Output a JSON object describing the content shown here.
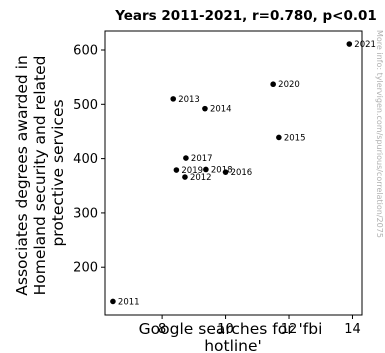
{
  "chart_data": {
    "type": "scatter",
    "title": "Years 2011-2021, r=0.780, p<0.01",
    "xlabel": [
      "Google searches for 'fbi",
      "hotline'"
    ],
    "ylabel": [
      "Associates degrees awarded in",
      "Homeland security and related",
      "protective services"
    ],
    "xlim": [
      6.2,
      14.3
    ],
    "ylim": [
      112,
      635
    ],
    "xticks": [
      8,
      10,
      12,
      14
    ],
    "yticks": [
      200,
      300,
      400,
      500,
      600
    ],
    "points": [
      {
        "label": "2011",
        "x": 6.45,
        "y": 137
      },
      {
        "label": "2012",
        "x": 8.72,
        "y": 366
      },
      {
        "label": "2013",
        "x": 8.35,
        "y": 510
      },
      {
        "label": "2014",
        "x": 9.35,
        "y": 492
      },
      {
        "label": "2015",
        "x": 11.68,
        "y": 439
      },
      {
        "label": "2016",
        "x": 10.0,
        "y": 375
      },
      {
        "label": "2017",
        "x": 8.75,
        "y": 401
      },
      {
        "label": "2018",
        "x": 9.38,
        "y": 380
      },
      {
        "label": "2019",
        "x": 8.45,
        "y": 379
      },
      {
        "label": "2020",
        "x": 11.5,
        "y": 537
      },
      {
        "label": "2021",
        "x": 13.9,
        "y": 611
      }
    ],
    "grid": false,
    "marker_color": "#000000"
  },
  "watermark": "More info: tylervigen.com/spurious/correlation/2075"
}
